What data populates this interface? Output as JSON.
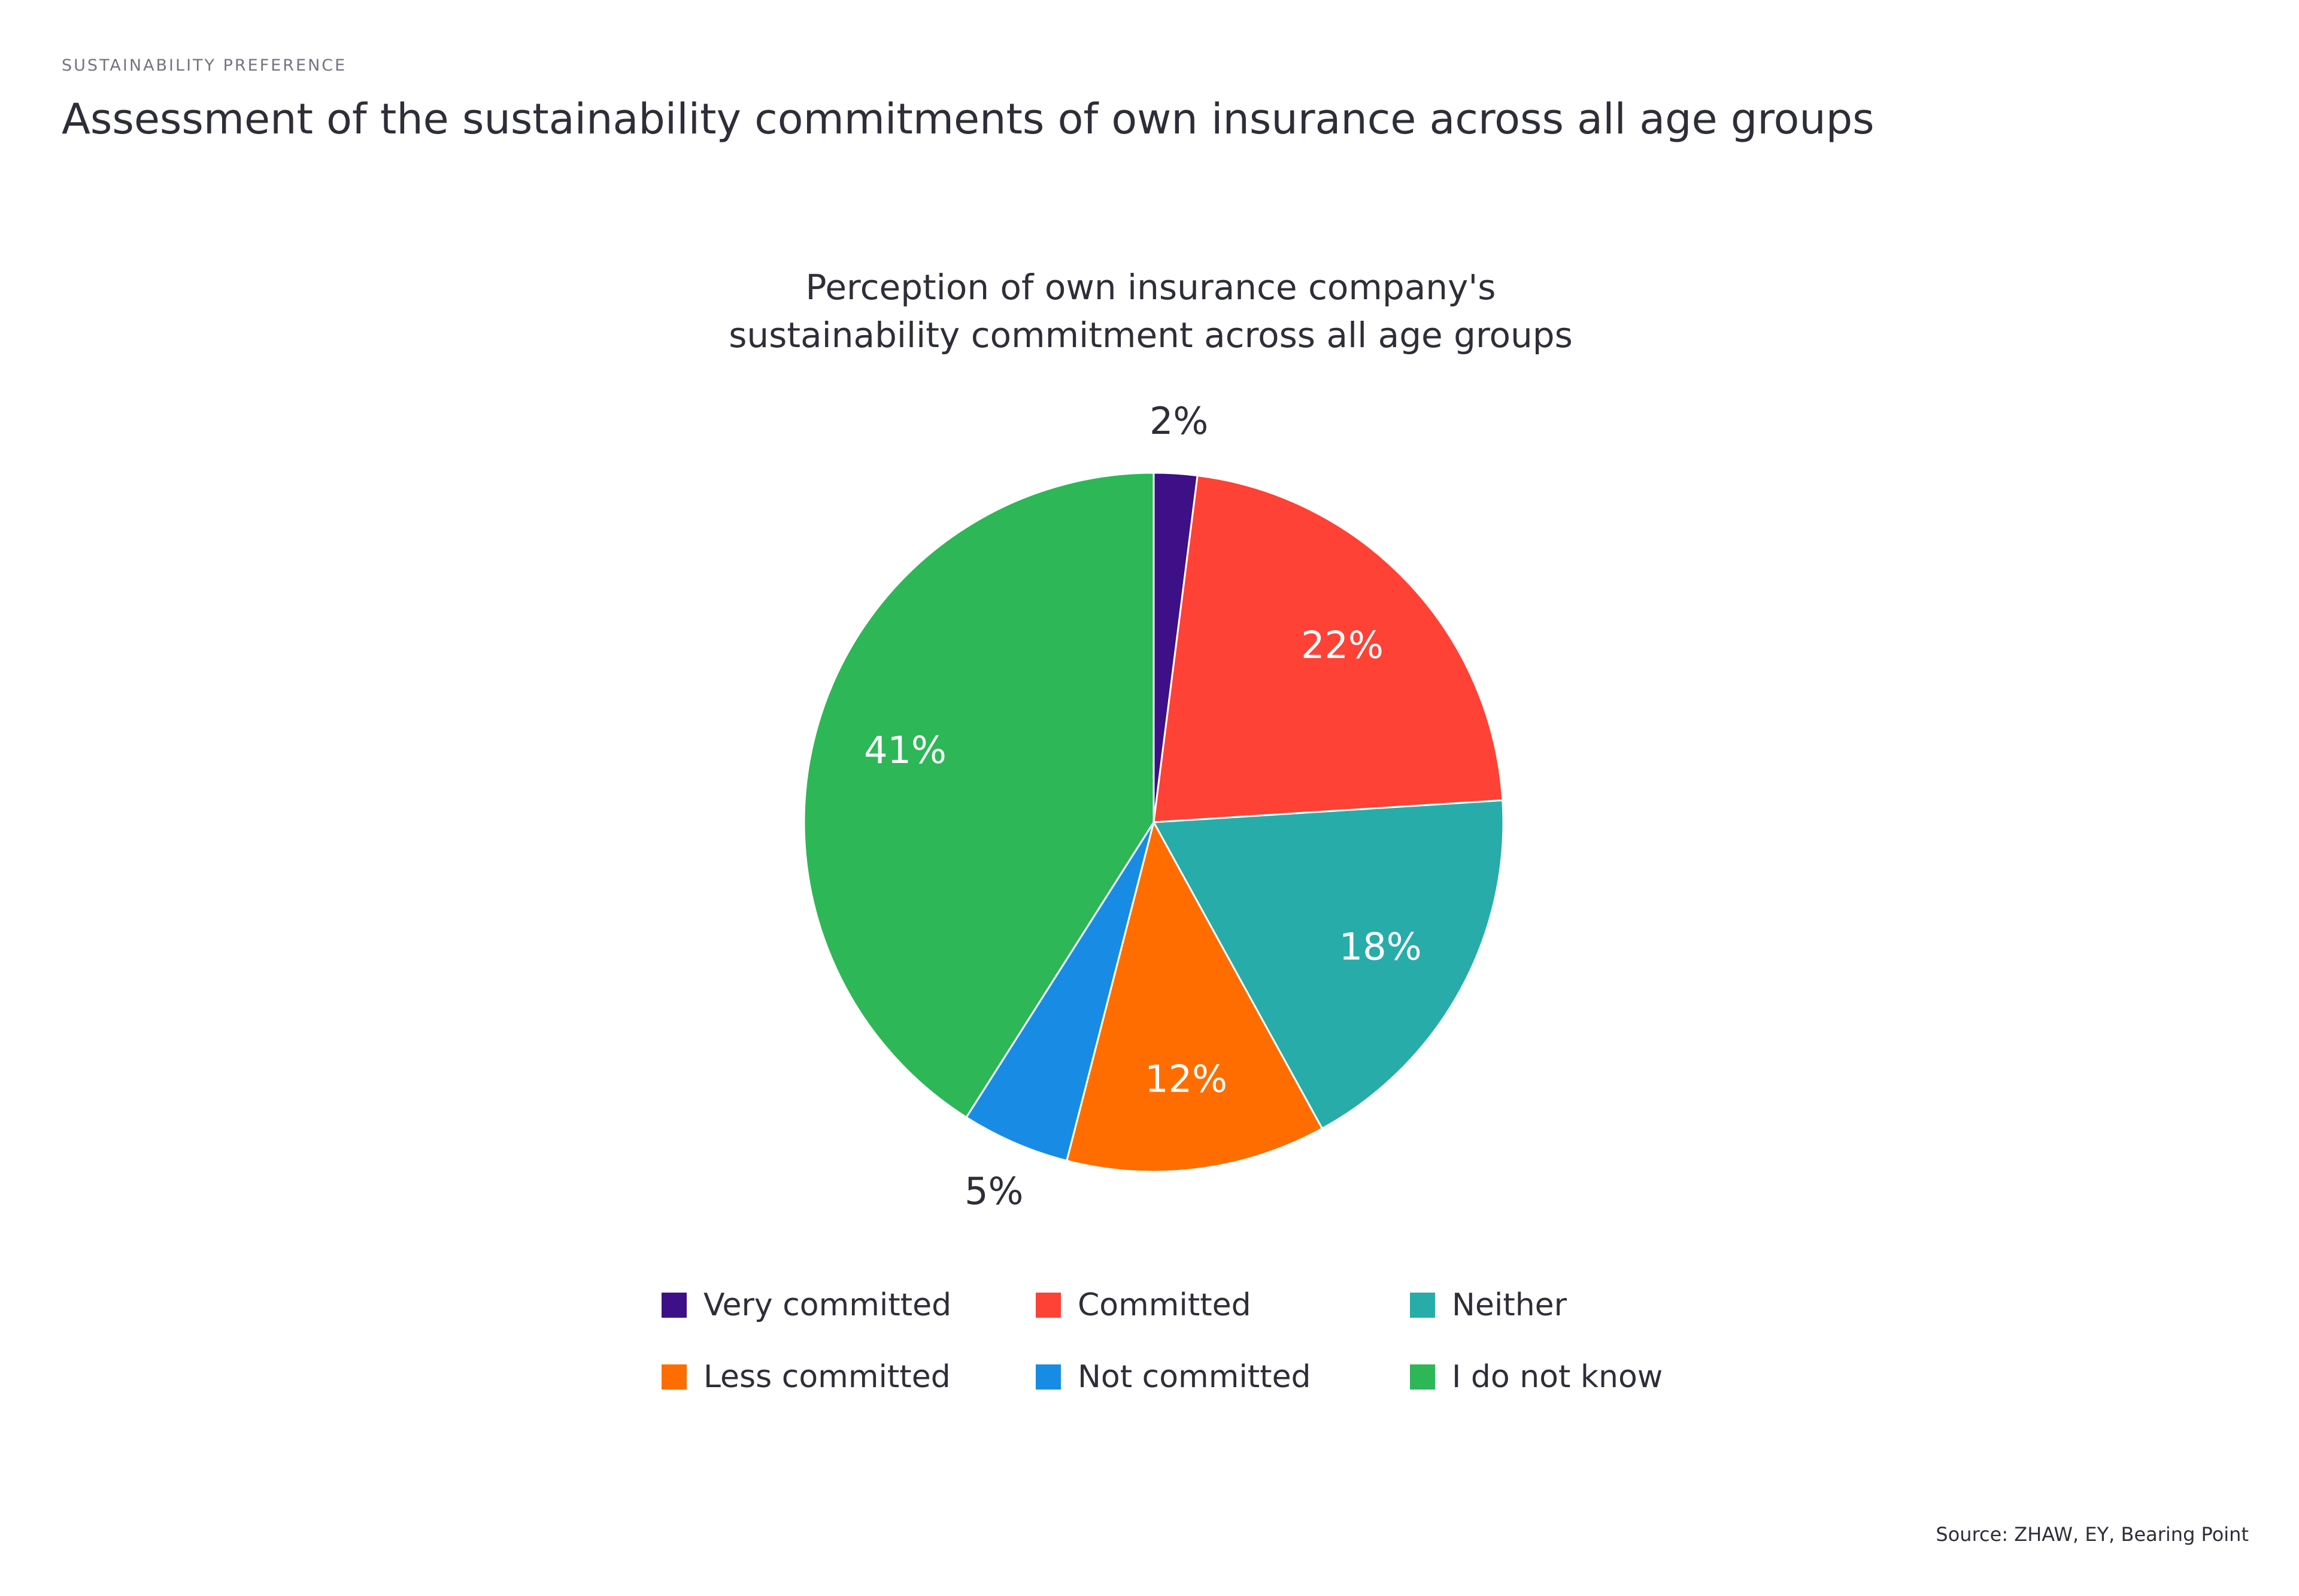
{
  "header": {
    "kicker": "SUSTAINABILITY PREFERENCE",
    "title": "Assessment of the sustainability commitments of own insurance across all age groups"
  },
  "source": "Source: ZHAW, EY, Bearing Point",
  "chart_data": {
    "type": "pie",
    "title_lines": [
      "Perception of own insurance company's",
      "sustainability commitment across all age groups"
    ],
    "slices": [
      {
        "name": "Very committed",
        "value": 2,
        "label": "2%",
        "color": "#3d1087",
        "label_outside": true
      },
      {
        "name": "Committed",
        "value": 22,
        "label": "22%",
        "color": "#ff4136",
        "label_outside": false
      },
      {
        "name": "Neither",
        "value": 18,
        "label": "18%",
        "color": "#27acaa",
        "label_outside": false
      },
      {
        "name": "Less committed",
        "value": 12,
        "label": "12%",
        "color": "#ff6d00",
        "label_outside": false
      },
      {
        "name": "Not committed",
        "value": 5,
        "label": "5%",
        "color": "#188ce5",
        "label_outside": true
      },
      {
        "name": "I do not know",
        "value": 41,
        "label": "41%",
        "color": "#2db757",
        "label_outside": false
      }
    ],
    "legend_placement": "bottom",
    "start": "top-clockwise"
  }
}
